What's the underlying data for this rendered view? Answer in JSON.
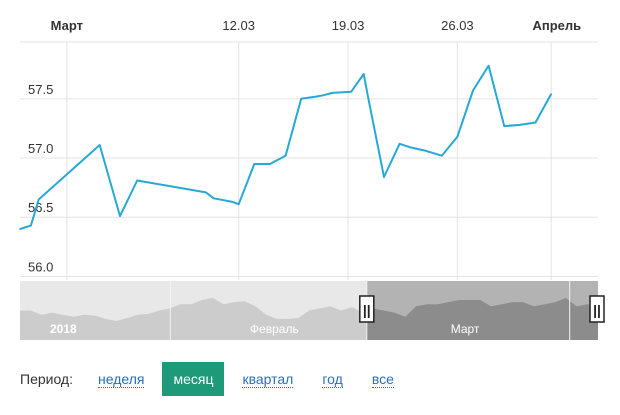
{
  "chart_data": {
    "type": "line",
    "x_tick_labels": [
      {
        "text": "Март",
        "x": 0.0
      },
      {
        "text": "12.03",
        "x": 11.0
      },
      {
        "text": "19.03",
        "x": 18.0
      },
      {
        "text": "26.03",
        "x": 25.0
      },
      {
        "text": "Апрель",
        "x": 31.0
      }
    ],
    "y_tick_labels": [
      "56.0",
      "56.5",
      "57.0",
      "57.5"
    ],
    "y_ticks": [
      56.0,
      56.5,
      57.0,
      57.5
    ],
    "ylim": [
      55.97,
      57.98
    ],
    "xlim": [
      -3.0,
      34.0
    ],
    "grid": true,
    "line_color": "#27a9d6",
    "series": [
      {
        "x": [
          -3.0,
          -2.3,
          -1.8,
          2.1,
          3.4,
          4.5,
          8.9,
          9.4,
          10.6,
          11.0,
          12.0,
          13.0,
          14.0,
          15.0,
          16.0,
          16.4,
          17.0,
          18.2,
          19.0,
          19.3,
          20.3,
          21.3,
          22.0,
          23.0,
          24.0,
          25.0,
          26.0,
          27.0,
          28.0,
          29.0,
          30.0,
          31.0
        ],
        "y": [
          56.4,
          56.43,
          56.65,
          57.11,
          56.51,
          56.81,
          56.71,
          56.66,
          56.63,
          56.61,
          56.95,
          56.95,
          57.02,
          57.5,
          57.52,
          57.53,
          57.55,
          57.56,
          57.71,
          57.5,
          56.84,
          57.12,
          57.09,
          57.06,
          57.02,
          57.18,
          57.57,
          57.78,
          57.27,
          57.28,
          57.3,
          57.54
        ]
      }
    ]
  },
  "navigator": {
    "labels": [
      "2018",
      "Февраль",
      "Март"
    ],
    "area_values": [
      56.3,
      56.3,
      56.2,
      56.25,
      56.2,
      56.15,
      56.2,
      56.18,
      56.1,
      56.05,
      56.12,
      56.2,
      56.22,
      56.3,
      56.35,
      56.45,
      56.45,
      56.55,
      56.6,
      56.45,
      56.5,
      56.52,
      56.4,
      56.2,
      56.1,
      56.1,
      56.12,
      56.3,
      56.35,
      56.4,
      56.3,
      56.38,
      56.25,
      56.35,
      56.3,
      56.25,
      56.15,
      56.4,
      56.45,
      56.45,
      56.5,
      56.55,
      56.55,
      56.55,
      56.4,
      56.45,
      56.5,
      56.5,
      56.4,
      56.45,
      56.5,
      56.6,
      56.4,
      56.45,
      56.4
    ],
    "selected_range": [
      0.6,
      1.0
    ],
    "handle_glyph": "||"
  },
  "period": {
    "label": "Период:",
    "options": [
      "неделя",
      "месяц",
      "квартал",
      "год",
      "все"
    ],
    "active": "месяц"
  },
  "colors": {
    "grid": "#e3e3e3",
    "nav_bg": "#e8e8e8",
    "nav_area": "#cccccc",
    "nav_selected_bg": "#b3b3b3",
    "nav_selected_area": "#8c8c8c",
    "active_button": "#1e9a78"
  }
}
